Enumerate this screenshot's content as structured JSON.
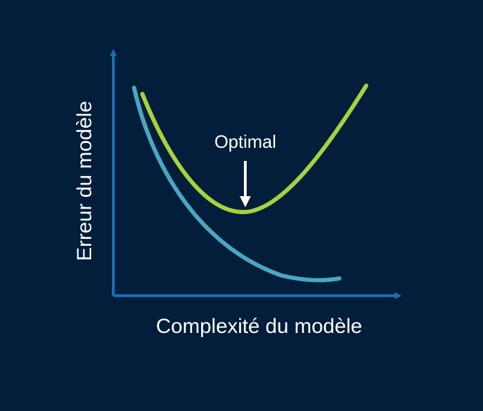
{
  "diagram": {
    "x_axis_label": "Complexité du modèle",
    "y_axis_label": "Erreur du modèle",
    "annotation": "Optimal"
  },
  "colors": {
    "background": "#031e3a",
    "axis": "#1b6fb3",
    "curve_light_blue": "#4aa7c1",
    "curve_green": "#a6d33b",
    "text": "#ffffff"
  }
}
